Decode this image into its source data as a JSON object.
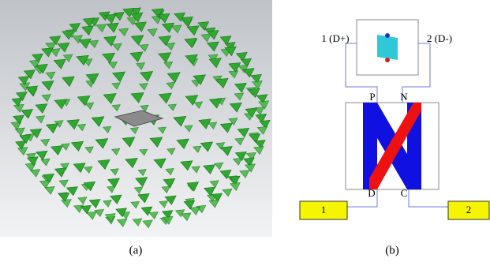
{
  "panel_a": {
    "caption": "(a)"
  },
  "panel_b": {
    "caption": "(b)",
    "port_labels": [
      "1 (D+)",
      "2 (D-)"
    ],
    "terminals": [
      "P",
      "N",
      "D",
      "C"
    ],
    "ports": [
      "1",
      "2"
    ]
  }
}
